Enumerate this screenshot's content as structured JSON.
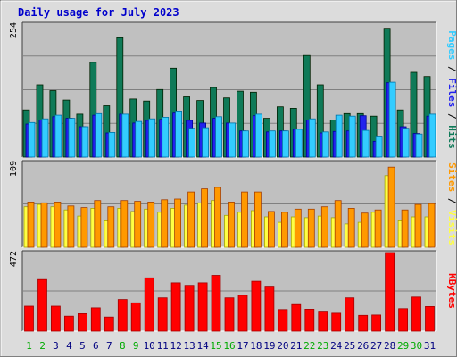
{
  "chart_data": {
    "title": "Daily usage for July 2023",
    "type": "bar",
    "categories": [
      "1",
      "2",
      "3",
      "4",
      "5",
      "6",
      "7",
      "8",
      "9",
      "10",
      "11",
      "12",
      "13",
      "14",
      "15",
      "16",
      "17",
      "18",
      "19",
      "20",
      "21",
      "22",
      "23",
      "24",
      "25",
      "26",
      "27",
      "28",
      "29",
      "30",
      "31"
    ],
    "weekend_days": [
      "1",
      "2",
      "8",
      "9",
      "15",
      "16",
      "22",
      "23",
      "29",
      "30"
    ],
    "panels": [
      {
        "id": "hits",
        "ymax_label": "254",
        "ymax": 254,
        "ylabel_parts": [
          "Pages",
          "Files",
          "Hits"
        ],
        "series": [
          {
            "name": "Hits",
            "color": "#0f7a58",
            "values": [
              90,
              138,
              127,
              109,
              82,
              181,
              98,
              228,
              111,
              107,
              129,
              170,
              115,
              108,
              133,
              113,
              126,
              124,
              74,
              96,
              93,
              194,
              138,
              71,
              83,
              83,
              78,
              246,
              90,
              162,
              154
            ]
          },
          {
            "name": "Files",
            "color": "#2222ee",
            "values": [
              63,
              71,
              77,
              74,
              58,
              80,
              46,
              82,
              65,
              70,
              72,
              84,
              70,
              65,
              74,
              65,
              50,
              79,
              48,
              50,
              53,
              71,
              46,
              49,
              50,
              79,
              30,
              142,
              58,
              45,
              78
            ]
          },
          {
            "name": "Pages",
            "color": "#33ccff",
            "values": [
              66,
              73,
              80,
              74,
              58,
              83,
              47,
              82,
              68,
              73,
              76,
              88,
              55,
              56,
              77,
              65,
              50,
              82,
              50,
              50,
              53,
              73,
              48,
              80,
              78,
              51,
              40,
              143,
              55,
              44,
              82
            ]
          }
        ]
      },
      {
        "id": "visits",
        "ymax_label": "109",
        "ymax": 109,
        "ylabel_parts": [
          "Sites",
          "Visits"
        ],
        "series": [
          {
            "name": "Visits",
            "color": "#ffff44",
            "values": [
              52,
              55,
              52,
              48,
              40,
              50,
              34,
              50,
              46,
              49,
              45,
              50,
              54,
              57,
              60,
              41,
              45,
              47,
              39,
              32,
              39,
              38,
              40,
              38,
              30,
              32,
              45,
              92,
              34,
              39,
              39
            ]
          },
          {
            "name": "Sites",
            "color": "#ff9900",
            "values": [
              58,
              57,
              58,
              53,
              51,
              60,
              52,
              60,
              59,
              58,
              61,
              62,
              71,
              75,
              77,
              58,
              71,
              71,
              46,
              45,
              49,
              49,
              52,
              60,
              50,
              44,
              48,
              103,
              48,
              55,
              56
            ]
          }
        ]
      },
      {
        "id": "kbytes",
        "ymax_label": "472",
        "ymax": 472,
        "ylabel_parts": [
          "KBytes"
        ],
        "series": [
          {
            "name": "KBytes",
            "color": "#ff0000",
            "values": [
              150,
              310,
              150,
              90,
              105,
              140,
              85,
              190,
              170,
              320,
              200,
              290,
              275,
              290,
              335,
              200,
              215,
              300,
              265,
              130,
              160,
              132,
              115,
              108,
              200,
              95,
              97,
              472,
              135,
              205,
              148
            ]
          }
        ]
      }
    ]
  },
  "colors": {
    "weekday_label": "#000080",
    "weekend_label": "#00aa00",
    "title": "#0000cc",
    "plot_bg": "#c0c0c0",
    "frame_bg": "#dcdcdc",
    "grid": "#808080"
  }
}
